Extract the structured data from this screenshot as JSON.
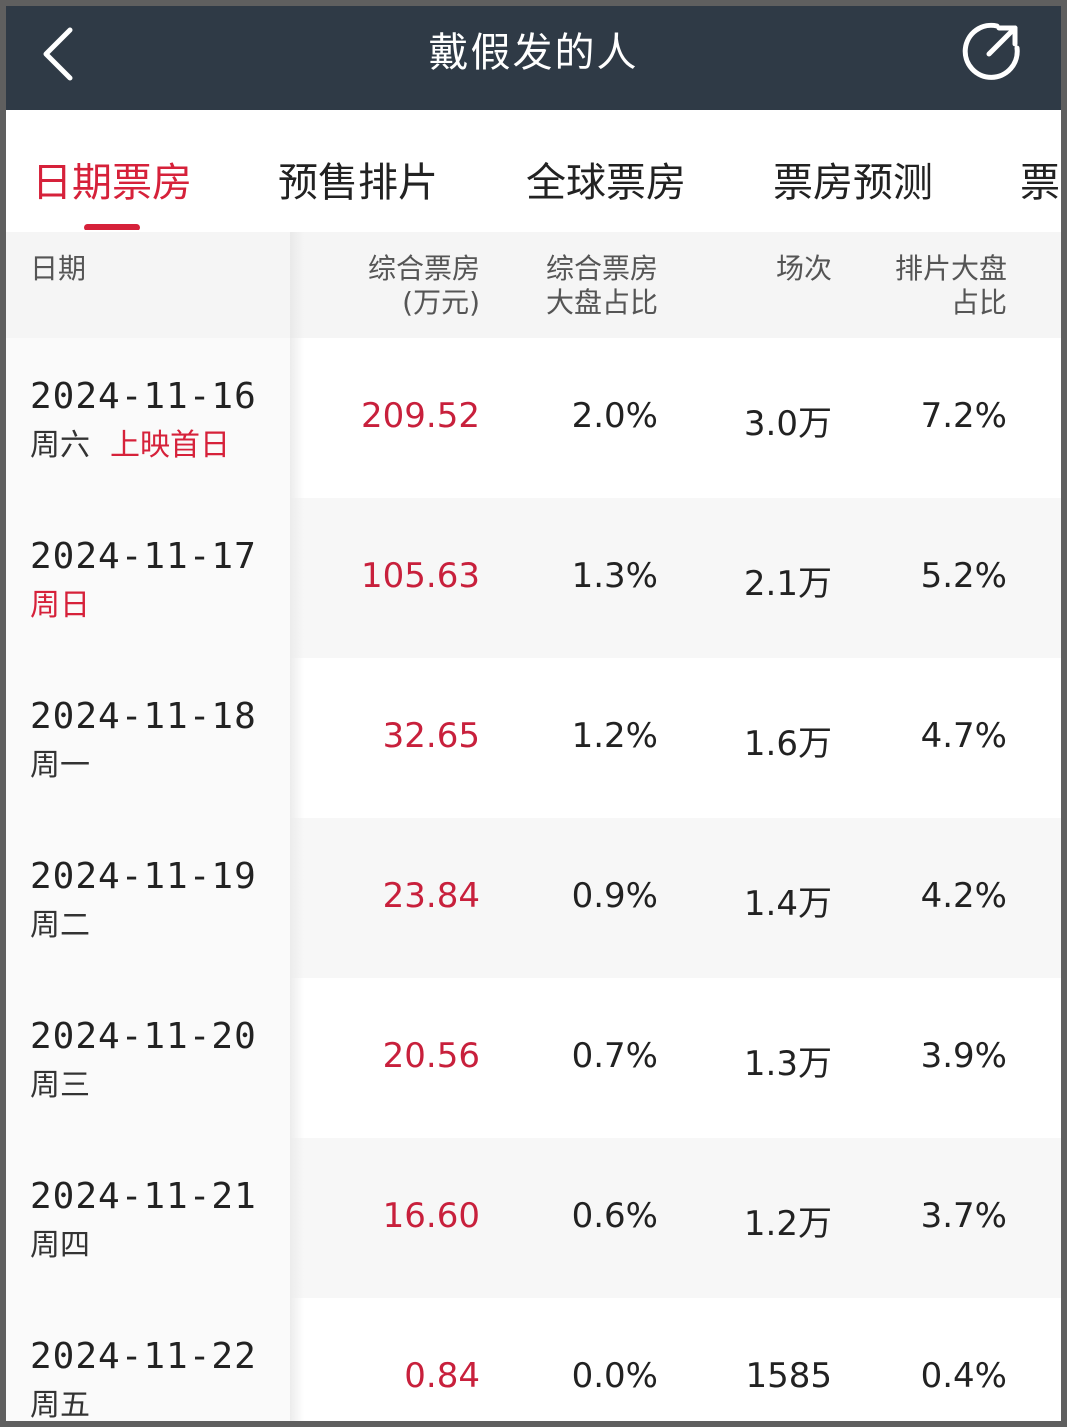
{
  "header": {
    "title": "戴假发的人"
  },
  "tabs": [
    {
      "label": "日期票房",
      "active": true
    },
    {
      "label": "预售排片",
      "active": false
    },
    {
      "label": "全球票房",
      "active": false
    },
    {
      "label": "票房预测",
      "active": false
    },
    {
      "label": "票房",
      "active": false
    }
  ],
  "table": {
    "columns": {
      "date": "日期",
      "boxoffice_line1": "综合票房",
      "boxoffice_line2": "(万元)",
      "share_line1": "综合票房",
      "share_line2": "大盘占比",
      "shows": "场次",
      "schedule_line1": "排片大盘",
      "schedule_line2": "占比"
    },
    "rows": [
      {
        "date": "2024-11-16",
        "weekday": "周六",
        "note": "上映首日",
        "boxoffice": "209.52",
        "share": "2.0%",
        "shows": "3.0万",
        "schedule": "7.2%"
      },
      {
        "date": "2024-11-17",
        "weekday": "周日",
        "note": "",
        "boxoffice": "105.63",
        "share": "1.3%",
        "shows": "2.1万",
        "schedule": "5.2%"
      },
      {
        "date": "2024-11-18",
        "weekday": "周一",
        "note": "",
        "boxoffice": "32.65",
        "share": "1.2%",
        "shows": "1.6万",
        "schedule": "4.7%"
      },
      {
        "date": "2024-11-19",
        "weekday": "周二",
        "note": "",
        "boxoffice": "23.84",
        "share": "0.9%",
        "shows": "1.4万",
        "schedule": "4.2%"
      },
      {
        "date": "2024-11-20",
        "weekday": "周三",
        "note": "",
        "boxoffice": "20.56",
        "share": "0.7%",
        "shows": "1.3万",
        "schedule": "3.9%"
      },
      {
        "date": "2024-11-21",
        "weekday": "周四",
        "note": "",
        "boxoffice": "16.60",
        "share": "0.6%",
        "shows": "1.2万",
        "schedule": "3.7%"
      },
      {
        "date": "2024-11-22",
        "weekday": "周五",
        "note": "",
        "boxoffice": "0.84",
        "share": "0.0%",
        "shows": "1585",
        "schedule": "0.4%"
      }
    ]
  },
  "icons": {
    "back": "chevron-left-icon",
    "share": "share-icon"
  },
  "colors": {
    "header_bg": "#2f3a46",
    "accent_red": "#d6213a",
    "boxoffice_red": "#c8203c"
  }
}
